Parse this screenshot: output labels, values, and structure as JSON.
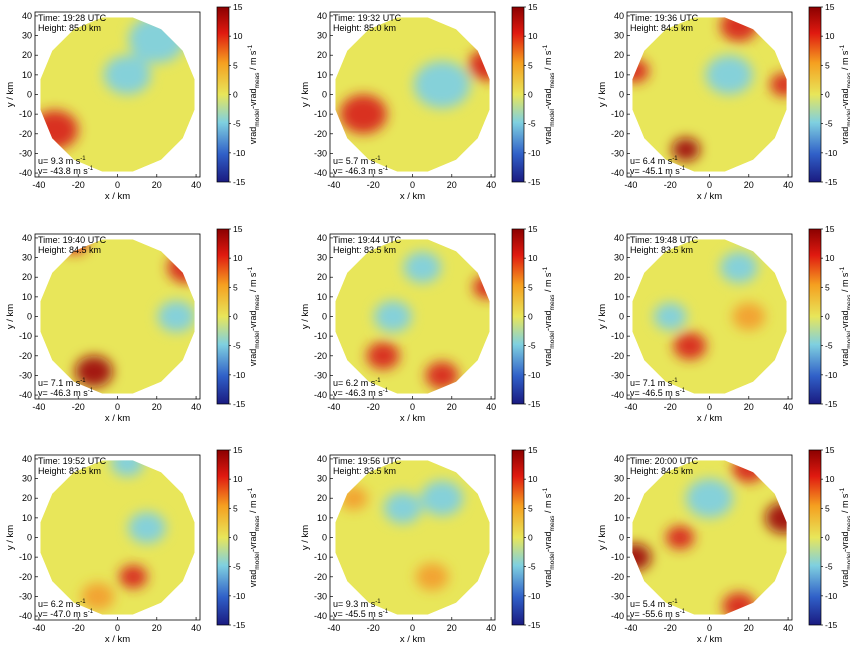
{
  "common": {
    "xlabel": "x / km",
    "ylabel": "y / km",
    "colorbar_label_main": "vrad",
    "colorbar_label_sub1": "model",
    "colorbar_label_mid": "-vrad",
    "colorbar_label_sub2": "meas",
    "colorbar_label_unit": " / m s",
    "colorbar_label_exp": "-1",
    "unit_ms": "m s",
    "unit_exp": "-1",
    "xticks": [
      "-40",
      "-20",
      "0",
      "20",
      "40"
    ],
    "yticks": [
      "40",
      "30",
      "20",
      "10",
      "0",
      "-10",
      "-20",
      "-30",
      "-40"
    ],
    "cticks": [
      "15",
      "10",
      "5",
      "0",
      "-5",
      "-10",
      "-15"
    ]
  },
  "colors": {
    "base": "#e8e65a",
    "cyan": "#7fd0e0",
    "orange": "#f2a030",
    "red": "#d8281c",
    "darkred": "#a01010"
  },
  "chart_data": [
    {
      "type": "heatmap",
      "time": "Time: 19:28 UTC",
      "height": "Height: 85.0 km",
      "u": "u= 9.3 m s",
      "v": "v= -43.8 m s",
      "xlim": [
        -42,
        42
      ],
      "ylim": [
        -42,
        42
      ],
      "clim": [
        -15,
        15
      ],
      "features": [
        {
          "x": -32,
          "y": -18,
          "r": 10,
          "value": 9
        },
        {
          "x": 20,
          "y": 28,
          "r": 12,
          "value": -4
        },
        {
          "x": 5,
          "y": 10,
          "r": 10,
          "value": -2
        }
      ]
    },
    {
      "type": "heatmap",
      "time": "Time: 19:32 UTC",
      "height": "Height: 85.0 km",
      "u": "u= 5.7 m s",
      "v": "v= -46.3 m s",
      "xlim": [
        -42,
        42
      ],
      "ylim": [
        -42,
        42
      ],
      "clim": [
        -15,
        15
      ],
      "features": [
        {
          "x": -25,
          "y": -10,
          "r": 10,
          "value": 8
        },
        {
          "x": 38,
          "y": 15,
          "r": 8,
          "value": 11
        },
        {
          "x": 15,
          "y": 5,
          "r": 12,
          "value": -3
        }
      ]
    },
    {
      "type": "heatmap",
      "time": "Time: 19:36 UTC",
      "height": "Height: 84.5 km",
      "u": "u= 6.4 m s",
      "v": "v= -45.1 m s",
      "xlim": [
        -42,
        42
      ],
      "ylim": [
        -42,
        42
      ],
      "clim": [
        -15,
        15
      ],
      "features": [
        {
          "x": -12,
          "y": -28,
          "r": 6,
          "value": 14
        },
        {
          "x": -38,
          "y": 12,
          "r": 6,
          "value": 10
        },
        {
          "x": 15,
          "y": 35,
          "r": 8,
          "value": 9
        },
        {
          "x": 38,
          "y": 5,
          "r": 6,
          "value": 9
        },
        {
          "x": 10,
          "y": 10,
          "r": 10,
          "value": -3
        }
      ]
    },
    {
      "type": "heatmap",
      "time": "Time: 19:40 UTC",
      "height": "Height: 84.5 km",
      "u": "u= 7.1 m s",
      "v": "v= -46.3 m s",
      "xlim": [
        -42,
        42
      ],
      "ylim": [
        -42,
        42
      ],
      "clim": [
        -15,
        15
      ],
      "features": [
        {
          "x": -12,
          "y": -28,
          "r": 8,
          "value": 14
        },
        {
          "x": -22,
          "y": 38,
          "r": 6,
          "value": 9
        },
        {
          "x": 35,
          "y": 25,
          "r": 8,
          "value": 10
        },
        {
          "x": 30,
          "y": 0,
          "r": 8,
          "value": -4
        }
      ]
    },
    {
      "type": "heatmap",
      "time": "Time: 19:44 UTC",
      "height": "Height: 83.5 km",
      "u": "u= 6.2 m s",
      "v": "v= -46.3 m s",
      "xlim": [
        -42,
        42
      ],
      "ylim": [
        -42,
        42
      ],
      "clim": [
        -15,
        15
      ],
      "features": [
        {
          "x": -10,
          "y": 0,
          "r": 8,
          "value": -5
        },
        {
          "x": 5,
          "y": 25,
          "r": 8,
          "value": -3
        },
        {
          "x": -15,
          "y": -20,
          "r": 7,
          "value": 8
        },
        {
          "x": 38,
          "y": 15,
          "r": 6,
          "value": 10
        },
        {
          "x": 15,
          "y": -30,
          "r": 7,
          "value": 8
        }
      ]
    },
    {
      "type": "heatmap",
      "time": "Time: 19:48 UTC",
      "height": "Height: 83.5 km",
      "u": "u= 7.1 m s",
      "v": "v= -46.5 m s",
      "xlim": [
        -42,
        42
      ],
      "ylim": [
        -42,
        42
      ],
      "clim": [
        -15,
        15
      ],
      "features": [
        {
          "x": -20,
          "y": 0,
          "r": 7,
          "value": -4
        },
        {
          "x": 15,
          "y": 25,
          "r": 8,
          "value": -3
        },
        {
          "x": -10,
          "y": -15,
          "r": 7,
          "value": 8
        },
        {
          "x": 20,
          "y": 0,
          "r": 7,
          "value": 7
        }
      ]
    },
    {
      "type": "heatmap",
      "time": "Time: 19:52 UTC",
      "height": "Height: 83.5 km",
      "u": "u= 6.2 m s",
      "v": "v= -47.0 m s",
      "xlim": [
        -42,
        42
      ],
      "ylim": [
        -42,
        42
      ],
      "clim": [
        -15,
        15
      ],
      "features": [
        {
          "x": 5,
          "y": 38,
          "r": 7,
          "value": -3
        },
        {
          "x": 8,
          "y": -20,
          "r": 6,
          "value": 10
        },
        {
          "x": 15,
          "y": 5,
          "r": 8,
          "value": -3
        },
        {
          "x": -10,
          "y": -30,
          "r": 7,
          "value": 6
        }
      ]
    },
    {
      "type": "heatmap",
      "time": "Time: 19:56 UTC",
      "height": "Height: 83.5 km",
      "u": "u= 9.3 m s",
      "v": "v= -45.5 m s",
      "xlim": [
        -42,
        42
      ],
      "ylim": [
        -42,
        42
      ],
      "clim": [
        -15,
        15
      ],
      "features": [
        {
          "x": 15,
          "y": 20,
          "r": 9,
          "value": -4
        },
        {
          "x": -5,
          "y": 15,
          "r": 8,
          "value": -3
        },
        {
          "x": -30,
          "y": 20,
          "r": 6,
          "value": 6
        },
        {
          "x": 10,
          "y": -20,
          "r": 7,
          "value": 6
        }
      ]
    },
    {
      "type": "heatmap",
      "time": "Time: 20:00 UTC",
      "height": "Height: 84.5 km",
      "u": "u= 5.4 m s",
      "v": "v= -55.6 m s",
      "xlim": [
        -42,
        42
      ],
      "ylim": [
        -42,
        42
      ],
      "clim": [
        -15,
        15
      ],
      "features": [
        {
          "x": -38,
          "y": -10,
          "r": 7,
          "value": 12
        },
        {
          "x": 38,
          "y": 10,
          "r": 8,
          "value": 12
        },
        {
          "x": -15,
          "y": 0,
          "r": 6,
          "value": 10
        },
        {
          "x": 20,
          "y": 35,
          "r": 7,
          "value": 8
        },
        {
          "x": 0,
          "y": 20,
          "r": 10,
          "value": -4
        },
        {
          "x": 15,
          "y": -35,
          "r": 7,
          "value": 8
        }
      ]
    }
  ]
}
